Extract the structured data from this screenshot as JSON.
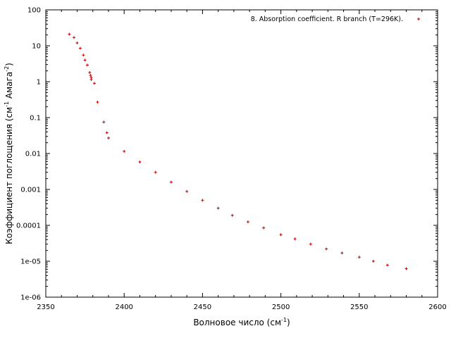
{
  "chart_data": {
    "type": "scatter",
    "title": "",
    "xlabel": "Волновое число (см",
    "xlabel_sup": "-1",
    "xlabel_tail": ")",
    "ylabel": "Коэффициент поглощения (см",
    "ylabel_sup1": "-1",
    "ylabel_mid": " Амага",
    "ylabel_sup2": "-2",
    "ylabel_tail": ")",
    "xlim": [
      2350,
      2600
    ],
    "ylim": [
      1e-06,
      100
    ],
    "yscale": "log",
    "grid": false,
    "legend_position": "top-right",
    "x_ticks": [
      2350,
      2400,
      2450,
      2500,
      2550,
      2600
    ],
    "x_tick_labels": [
      "2350",
      "2400",
      "2450",
      "2500",
      "2550",
      "2600"
    ],
    "y_ticks": [
      1e-06,
      1e-05,
      0.0001,
      0.001,
      0.01,
      0.1,
      1,
      10,
      100
    ],
    "y_tick_labels": [
      "1e-06",
      "1e-05",
      "0.0001",
      "0.001",
      "0.01",
      "0.1",
      "1",
      "10",
      "100"
    ],
    "series": [
      {
        "name": "8. Absorption coefficient. R branch (T=296K).",
        "color": "#c00000",
        "marker": "plus",
        "x": [
          2365,
          2368,
          2370,
          2372,
          2374,
          2375,
          2376.5,
          2378,
          2378.5,
          2379,
          2379,
          2381,
          2383,
          2387,
          2389,
          2390,
          2400,
          2410,
          2420,
          2430,
          2440,
          2450,
          2460,
          2469,
          2479,
          2489,
          2500,
          2509,
          2519,
          2529,
          2539,
          2550,
          2559,
          2568,
          2580
        ],
        "y": [
          21,
          17,
          12,
          8.5,
          5.5,
          4,
          2.9,
          1.8,
          1.5,
          1.3,
          1.15,
          0.9,
          0.27,
          0.075,
          0.038,
          0.027,
          0.0115,
          0.0058,
          0.003,
          0.0016,
          0.00088,
          0.0005,
          0.0003,
          0.00019,
          0.000125,
          8.5e-05,
          5.5e-05,
          4.2e-05,
          3e-05,
          2.2e-05,
          1.7e-05,
          1.3e-05,
          1e-05,
          7.8e-06,
          6.2e-06
        ]
      }
    ]
  }
}
